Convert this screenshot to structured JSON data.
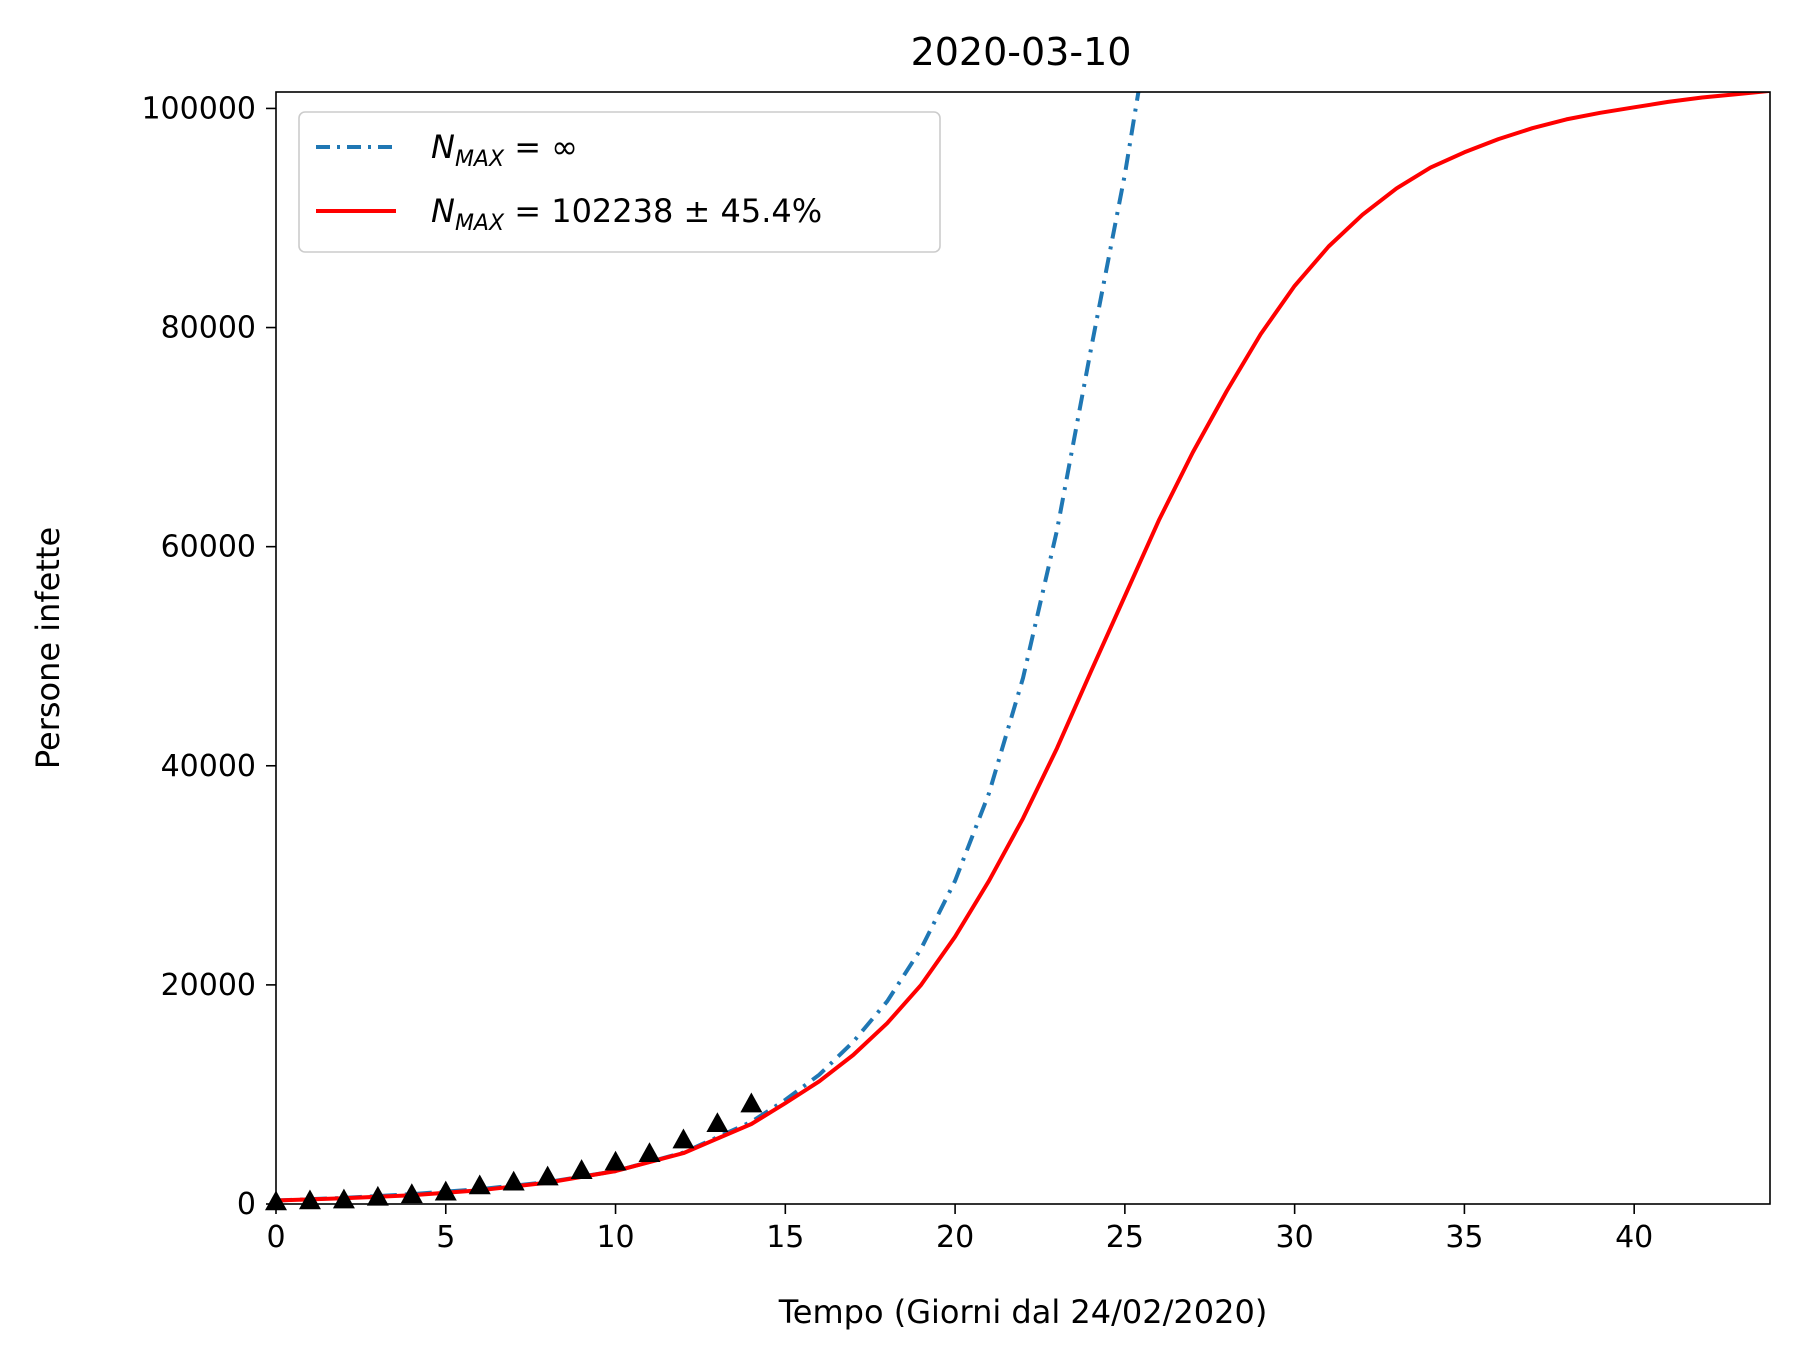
{
  "chart_data": {
    "type": "line",
    "title": "2020-03-10",
    "xlabel": "Tempo (Giorni dal 24/02/2020)",
    "ylabel": "Persone infette",
    "xlim": [
      0,
      44
    ],
    "ylim": [
      0,
      101500
    ],
    "x_ticks": [
      0,
      5,
      10,
      15,
      20,
      25,
      30,
      35,
      40
    ],
    "y_ticks": [
      0,
      20000,
      40000,
      60000,
      80000,
      100000
    ],
    "grid": false,
    "legend": {
      "placement": "top-left",
      "entries": [
        {
          "series": "exponential",
          "base": "N",
          "sub": "MAX",
          "rest": " = ∞"
        },
        {
          "series": "logistic",
          "base": "N",
          "sub": "MAX",
          "rest": " = 102238 ± 45.4%"
        }
      ]
    },
    "series": [
      {
        "id": "exponential",
        "kind": "line",
        "style": "dashdot",
        "color": "#1f77b4",
        "label": "N_MAX = ∞",
        "x": [
          0,
          2,
          4,
          6,
          8,
          10,
          12,
          14,
          15,
          16,
          17,
          18,
          19,
          20,
          21,
          22,
          23,
          24,
          25,
          25.4
        ],
        "values": [
          320,
          560,
          900,
          1350,
          2000,
          3000,
          4700,
          7500,
          9500,
          11800,
          14800,
          18500,
          23300,
          29500,
          37500,
          48000,
          61500,
          78000,
          94000,
          101500
        ]
      },
      {
        "id": "logistic",
        "kind": "line",
        "style": "solid",
        "color": "#ff0000",
        "label": "N_MAX = 102238 ± 45.4%",
        "x": [
          0,
          2,
          4,
          6,
          8,
          10,
          12,
          14,
          15,
          16,
          17,
          18,
          19,
          20,
          21,
          22,
          23,
          24,
          25,
          26,
          27,
          28,
          29,
          30,
          31,
          32,
          33,
          34,
          35,
          36,
          37,
          38,
          39,
          40,
          41,
          42,
          43,
          44
        ],
        "values": [
          320,
          520,
          800,
          1250,
          1950,
          3000,
          4650,
          7300,
          9200,
          11200,
          13600,
          16500,
          20000,
          24400,
          29500,
          35200,
          41600,
          48600,
          55500,
          62400,
          68600,
          74200,
          79400,
          83800,
          87400,
          90300,
          92700,
          94600,
          96000,
          97200,
          98200,
          99000,
          99600,
          100100,
          100600,
          101000,
          101300,
          101600
        ]
      },
      {
        "id": "observed",
        "kind": "marker",
        "marker": "triangle",
        "color": "#000000",
        "x": [
          0,
          1,
          2,
          3,
          4,
          5,
          6,
          7,
          8,
          9,
          10,
          11,
          12,
          13,
          14
        ],
        "values": [
          229,
          322,
          400,
          650,
          888,
          1128,
          1694,
          2036,
          2502,
          3089,
          3858,
          4636,
          5883,
          7375,
          9172
        ]
      }
    ]
  }
}
